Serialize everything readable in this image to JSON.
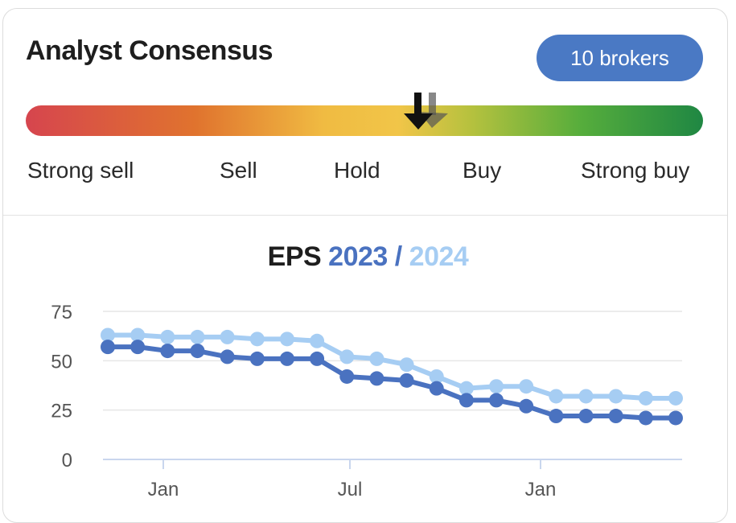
{
  "card": {
    "title": "Analyst Consensus",
    "brokers_label": "10  brokers"
  },
  "gauge": {
    "labels": [
      "Strong sell",
      "Sell",
      "Hold",
      "Buy",
      "Strong buy"
    ],
    "colors": [
      "#d6454e",
      "#e0732e",
      "#f1c548",
      "#56ad3c",
      "#1f8743"
    ],
    "current_icon": "arrow-down-icon",
    "previous_icon": "arrow-down-icon"
  },
  "eps": {
    "prefix": "EPS",
    "year_a": "2023",
    "separator": " /",
    "year_b": "2024",
    "color_a": "#4a72c0",
    "color_b": "#a6cdf3"
  },
  "chart_data": {
    "type": "line",
    "title": "EPS 2023 / 2024",
    "yticks": [
      "75",
      "50",
      "25",
      "0"
    ],
    "ylim": [
      0,
      75
    ],
    "xticks": [
      "Jan",
      "Jul",
      "Jan"
    ],
    "grid": true,
    "series": [
      {
        "name": "2024",
        "color": "#a6cdf3",
        "values": [
          63,
          63,
          62,
          62,
          62,
          61,
          61,
          60,
          52,
          51,
          48,
          42,
          36,
          37,
          37,
          32,
          32,
          32,
          31,
          31
        ]
      },
      {
        "name": "2023",
        "color": "#4a72c0",
        "values": [
          57,
          57,
          55,
          55,
          52,
          51,
          51,
          51,
          42,
          41,
          40,
          36,
          30,
          30,
          27,
          22,
          22,
          22,
          21,
          21
        ]
      }
    ]
  }
}
